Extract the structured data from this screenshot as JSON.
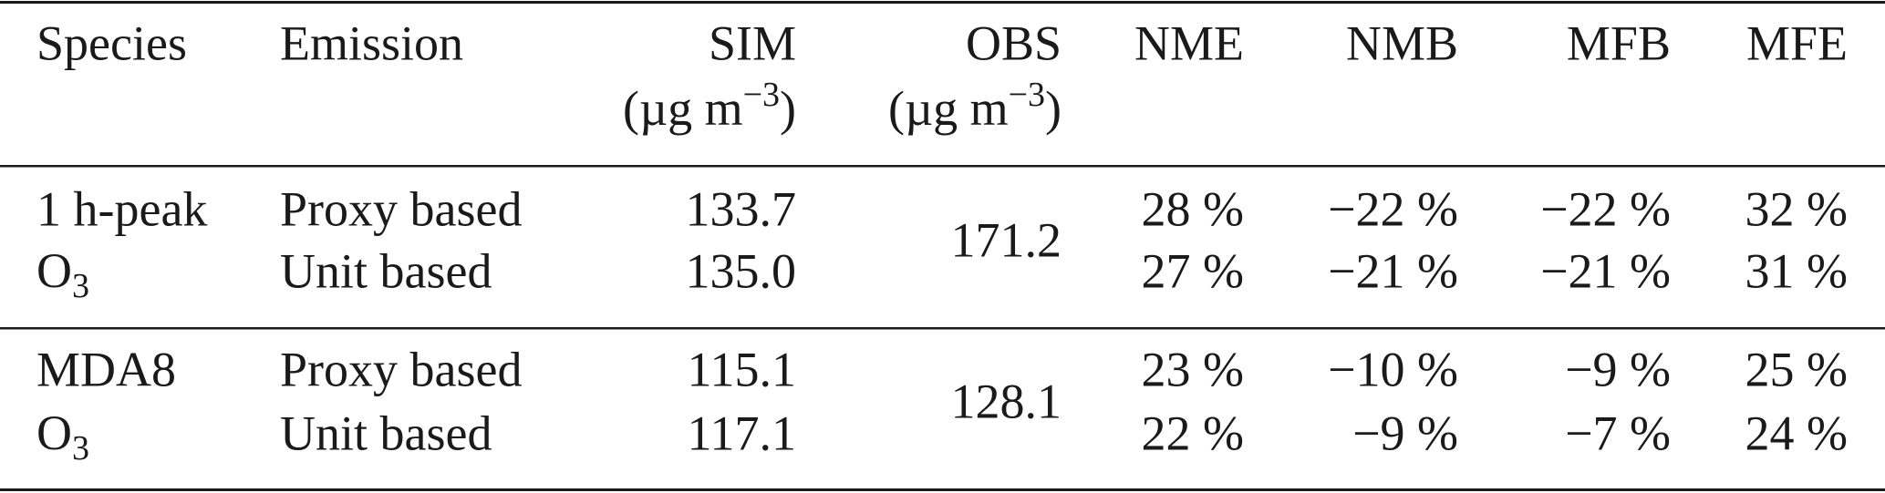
{
  "table": {
    "header": [
      {
        "label": "Species"
      },
      {
        "label": "Emission"
      },
      {
        "label": "SIM",
        "unit": [
          "(µg m",
          "−3",
          ")"
        ]
      },
      {
        "label": "OBS",
        "unit": [
          "(µg m",
          "−3",
          ")"
        ]
      },
      {
        "label": "NME"
      },
      {
        "label": "NMB"
      },
      {
        "label": "MFB"
      },
      {
        "label": "MFE"
      }
    ],
    "groups": [
      {
        "species": [
          "1 h-peak",
          "O",
          "3"
        ],
        "obs": "171.2",
        "rows": [
          {
            "emission": "Proxy based",
            "sim": "133.7",
            "nme": "28 %",
            "nmb": "−22 %",
            "mfb": "−22 %",
            "mfe": "32 %"
          },
          {
            "emission": "Unit based",
            "sim": "135.0",
            "nme": "27 %",
            "nmb": "−21 %",
            "mfb": "−21 %",
            "mfe": "31 %"
          }
        ]
      },
      {
        "species": [
          "MDA8",
          "O",
          "3"
        ],
        "obs": "128.1",
        "rows": [
          {
            "emission": "Proxy based",
            "sim": "115.1",
            "nme": "23 %",
            "nmb": "−10 %",
            "mfb": "−9 %",
            "mfe": "25 %"
          },
          {
            "emission": "Unit based",
            "sim": "117.1",
            "nme": "22 %",
            "nmb": "−9 %",
            "mfb": "−7 %",
            "mfe": "24 %"
          }
        ]
      }
    ]
  }
}
